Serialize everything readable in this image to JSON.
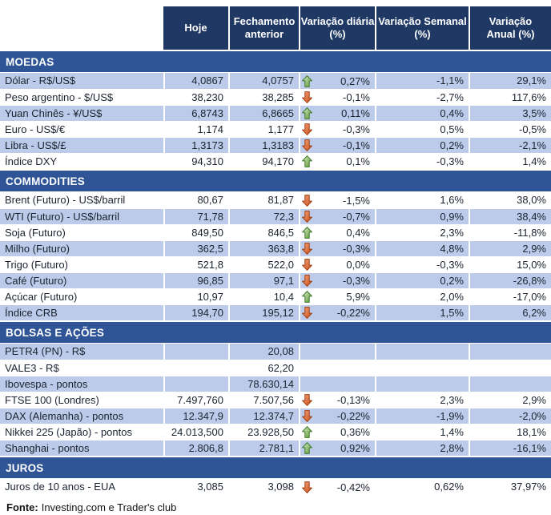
{
  "columns": [
    "Hoje",
    "Fechamento\nanterior",
    "Variação diária\n(%)",
    "Variação Semanal\n(%)",
    "Variação\nAnual (%)"
  ],
  "sections": [
    {
      "title": "MOEDAS",
      "rows": [
        {
          "label": "Dólar - R$/US$",
          "hoje": "4,0867",
          "fechamento": "4,0757",
          "arrow": "up",
          "var_diaria": "0,27%",
          "var_semanal": "-1,1%",
          "var_anual": "29,1%"
        },
        {
          "label": "Peso argentino - $/US$",
          "hoje": "38,230",
          "fechamento": "38,285",
          "arrow": "down",
          "var_diaria": "-0,1%",
          "var_semanal": "-2,7%",
          "var_anual": "117,6%"
        },
        {
          "label": "Yuan Chinês - ¥/US$",
          "hoje": "6,8743",
          "fechamento": "6,8665",
          "arrow": "up",
          "var_diaria": "0,11%",
          "var_semanal": "0,4%",
          "var_anual": "3,5%"
        },
        {
          "label": "Euro - US$/€",
          "hoje": "1,174",
          "fechamento": "1,177",
          "arrow": "down",
          "var_diaria": "-0,3%",
          "var_semanal": "0,5%",
          "var_anual": "-0,5%"
        },
        {
          "label": "Libra - US$/£",
          "hoje": "1,3173",
          "fechamento": "1,3183",
          "arrow": "down",
          "var_diaria": "-0,1%",
          "var_semanal": "0,2%",
          "var_anual": "-2,1%"
        },
        {
          "label": "Índice DXY",
          "hoje": "94,310",
          "fechamento": "94,170",
          "arrow": "up",
          "var_diaria": "0,1%",
          "var_semanal": "-0,3%",
          "var_anual": "1,4%"
        }
      ]
    },
    {
      "title": "COMMODITIES",
      "rows": [
        {
          "label": "Brent (Futuro) - US$/barril",
          "hoje": "80,67",
          "fechamento": "81,87",
          "arrow": "down",
          "var_diaria": "-1,5%",
          "var_semanal": "1,6%",
          "var_anual": "38,0%"
        },
        {
          "label": "WTI (Futuro) - US$/barril",
          "hoje": "71,78",
          "fechamento": "72,3",
          "arrow": "down",
          "var_diaria": "-0,7%",
          "var_semanal": "0,9%",
          "var_anual": "38,4%"
        },
        {
          "label": "Soja (Futuro)",
          "hoje": "849,50",
          "fechamento": "846,5",
          "arrow": "up",
          "var_diaria": "0,4%",
          "var_semanal": "2,3%",
          "var_anual": "-11,8%"
        },
        {
          "label": "Milho (Futuro)",
          "hoje": "362,5",
          "fechamento": "363,8",
          "arrow": "down",
          "var_diaria": "-0,3%",
          "var_semanal": "4,8%",
          "var_anual": "2,9%"
        },
        {
          "label": "Trigo (Futuro)",
          "hoje": "521,8",
          "fechamento": "522,0",
          "arrow": "down",
          "var_diaria": "0,0%",
          "var_semanal": "-0,3%",
          "var_anual": "15,0%"
        },
        {
          "label": "Café (Futuro)",
          "hoje": "96,85",
          "fechamento": "97,1",
          "arrow": "down",
          "var_diaria": "-0,3%",
          "var_semanal": "0,2%",
          "var_anual": "-26,8%"
        },
        {
          "label": "Açúcar (Futuro)",
          "hoje": "10,97",
          "fechamento": "10,4",
          "arrow": "up",
          "var_diaria": "5,9%",
          "var_semanal": "2,0%",
          "var_anual": "-17,0%"
        },
        {
          "label": "Índice CRB",
          "hoje": "194,70",
          "fechamento": "195,12",
          "arrow": "down",
          "var_diaria": "-0,22%",
          "var_semanal": "1,5%",
          "var_anual": "6,2%"
        }
      ]
    },
    {
      "title": "BOLSAS E AÇÕES",
      "rows": [
        {
          "label": "PETR4 (PN) - R$",
          "hoje": "",
          "fechamento": "20,08",
          "arrow": "none",
          "var_diaria": "",
          "var_semanal": "",
          "var_anual": ""
        },
        {
          "label": "VALE3 - R$",
          "hoje": "",
          "fechamento": "62,20",
          "arrow": "none",
          "var_diaria": "",
          "var_semanal": "",
          "var_anual": ""
        },
        {
          "label": "Ibovespa - pontos",
          "hoje": "",
          "fechamento": "78.630,14",
          "arrow": "none",
          "var_diaria": "",
          "var_semanal": "",
          "var_anual": ""
        },
        {
          "label": "FTSE 100 (Londres)",
          "hoje": "7.497,760",
          "fechamento": "7.507,56",
          "arrow": "down",
          "var_diaria": "-0,13%",
          "var_semanal": "2,3%",
          "var_anual": "2,9%"
        },
        {
          "label": "DAX (Alemanha) - pontos",
          "hoje": "12.347,9",
          "fechamento": "12.374,7",
          "arrow": "down",
          "var_diaria": "-0,22%",
          "var_semanal": "-1,9%",
          "var_anual": "-2,0%"
        },
        {
          "label": "Nikkei 225 (Japão) - pontos",
          "hoje": "24.013,500",
          "fechamento": "23.928,50",
          "arrow": "up",
          "var_diaria": "0,36%",
          "var_semanal": "1,4%",
          "var_anual": "18,1%"
        },
        {
          "label": "Shanghai - pontos",
          "hoje": "2.806,8",
          "fechamento": "2.781,1",
          "arrow": "up",
          "var_diaria": "0,92%",
          "var_semanal": "2,8%",
          "var_anual": "-16,1%"
        }
      ]
    },
    {
      "title": "JUROS",
      "rows": [
        {
          "label": "Juros de 10 anos - EUA",
          "hoje": "3,085",
          "fechamento": "3,098",
          "arrow": "down",
          "var_diaria": "-0,42%",
          "var_semanal": "0,62%",
          "var_anual": "37,97%"
        }
      ]
    }
  ],
  "footer": {
    "label": "Fonte:",
    "text": "Investing.com e Trader's club"
  },
  "icons": {
    "up": "up-arrow-icon",
    "down": "down-arrow-icon"
  },
  "colors": {
    "header_bg": "#1F3864",
    "section_bg": "#2F5597",
    "row_shaded_bg": "#BCCBE9",
    "row_bg": "#FFFFFF",
    "up_arrow": "#5E9632",
    "down_arrow": "#C94F1A",
    "header_text": "#FFFFFF",
    "body_text": "#1B2330"
  }
}
